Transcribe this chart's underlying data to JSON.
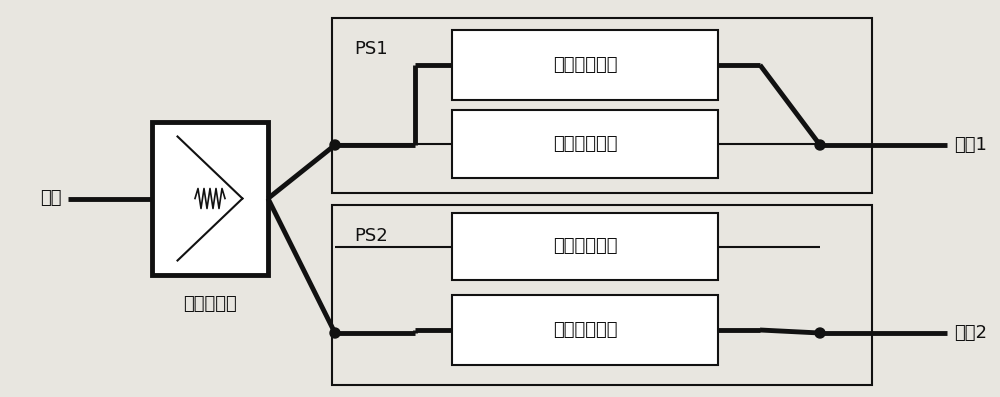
{
  "bg_color": "#e8e6e0",
  "box_fc": "#ffffff",
  "line_color": "#111111",
  "lw_thin": 1.5,
  "lw_thick": 3.5,
  "font_size": 13,
  "input_label": "输入",
  "output1_label": "输出1",
  "output2_label": "输出2",
  "power_divider_label": "功率分配器",
  "ps1_label": "PS1",
  "ps2_label": "PS2",
  "ref_branch_label": "参考分支电路",
  "phase_branch_label": "相移分支电路",
  "figsize": [
    10.0,
    3.97
  ],
  "dpi": 100
}
